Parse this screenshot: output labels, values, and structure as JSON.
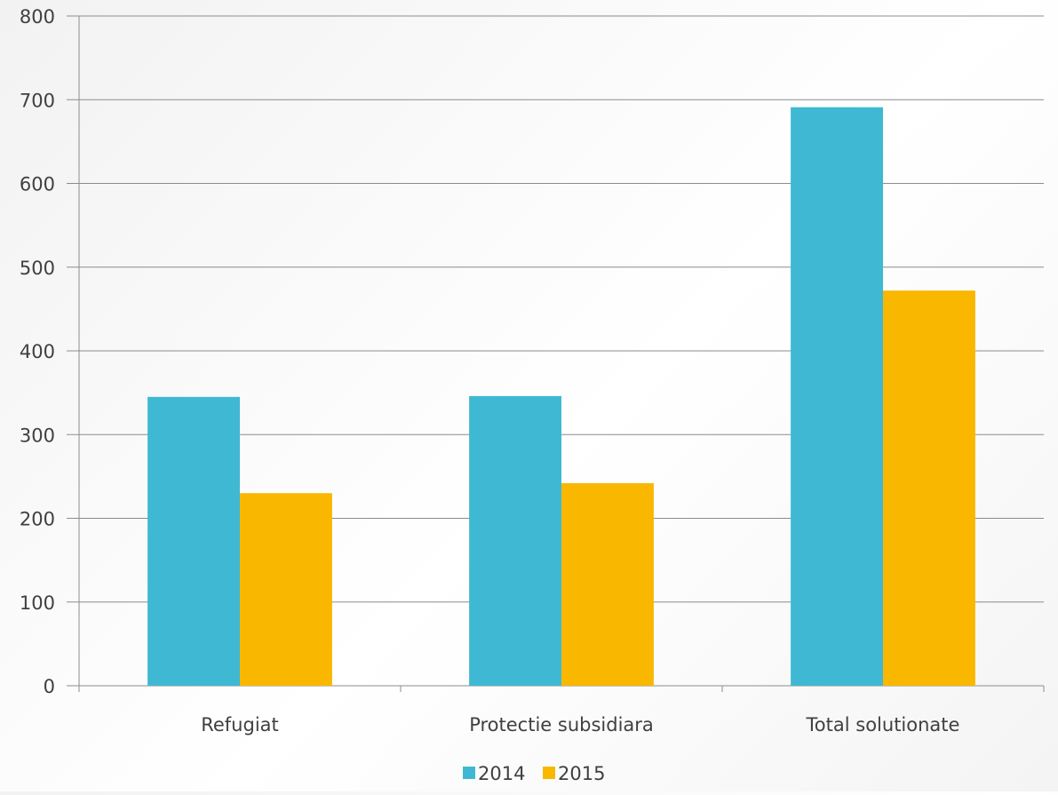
{
  "chart_data": {
    "type": "bar",
    "title": "",
    "xlabel": "",
    "ylabel": "",
    "categories": [
      "Refugiat",
      "Protectie subsidiara",
      "Total solutionate"
    ],
    "series": [
      {
        "name": "2014",
        "values": [
          345,
          346,
          691
        ],
        "color": "#3fb9d3"
      },
      {
        "name": "2015",
        "values": [
          230,
          242,
          472
        ],
        "color": "#f9b700"
      }
    ],
    "ylim": [
      0,
      800
    ],
    "yticks": [
      0,
      100,
      200,
      300,
      400,
      500,
      600,
      700,
      800
    ],
    "grid": true,
    "legend_position": "bottom"
  }
}
